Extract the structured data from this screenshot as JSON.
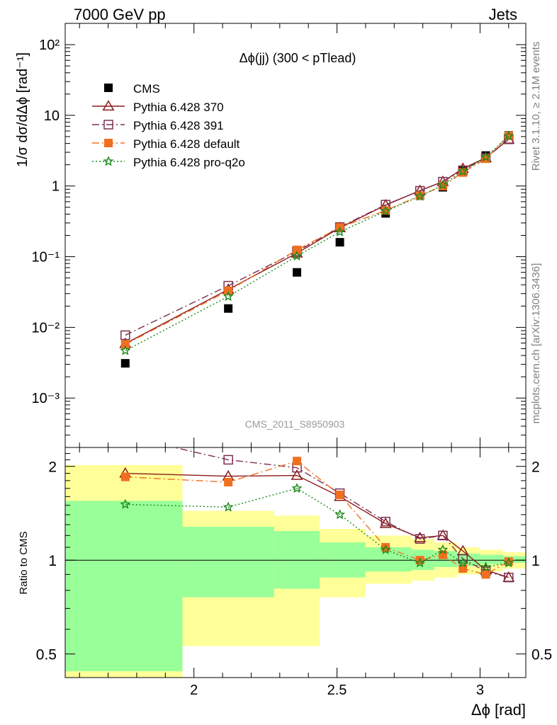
{
  "header": {
    "left": "7000 GeV pp",
    "right": "Jets"
  },
  "side_labels": {
    "rivet": "Rivet 3.1.10, ≥ 2.1M events",
    "mcplots": "mcplots.cern.ch [arXiv:1306.3436]"
  },
  "chart_data": {
    "type": "scatter",
    "title": "Δϕ(jj) (300 < pTlead)",
    "watermark": "CMS_2011_S8950903",
    "xlabel": "Δϕ [rad]",
    "ylabel_main": "1/σ dσ/dΔϕ [rad⁻¹]",
    "ylabel_ratio": "Ratio to CMS",
    "xlim": [
      1.55,
      3.16
    ],
    "ylim_main": [
      0.0002,
      200
    ],
    "ylim_ratio": [
      0.42,
      2.3
    ],
    "log_y": true,
    "x_ticks": [
      "2",
      "2.5",
      "3"
    ],
    "y_ticks_main": [
      "10⁻³",
      "10⁻²",
      "10⁻¹",
      "1",
      "10",
      "10²"
    ],
    "y_ticks_ratio": [
      "0.5",
      "1",
      "2"
    ],
    "x": [
      1.76,
      2.12,
      2.36,
      2.51,
      2.67,
      2.79,
      2.87,
      2.94,
      3.02,
      3.1
    ],
    "cms": [
      0.0031,
      0.0185,
      0.06,
      0.16,
      0.41,
      0.73,
      0.96,
      1.65,
      2.7,
      5.2
    ],
    "series": [
      {
        "name": "CMS",
        "color": "#000000",
        "marker": "filled-square"
      },
      {
        "name": "Pythia 6.428 370",
        "color": "#8b1a1a",
        "marker": "open-triangle",
        "dash": "solid",
        "ratio": [
          1.9,
          1.86,
          1.87,
          1.6,
          1.31,
          1.18,
          1.2,
          1.07,
          0.93,
          0.88
        ]
      },
      {
        "name": "Pythia 6.428 391",
        "color": "#7a3050",
        "marker": "open-square",
        "dash": "dashdot",
        "ratio": [
          2.5,
          2.1,
          1.98,
          1.64,
          1.33,
          1.17,
          1.2,
          1.01,
          0.92,
          0.88
        ]
      },
      {
        "name": "Pythia 6.428 default",
        "color": "#f07020",
        "marker": "filled-square",
        "dash": "dashdot",
        "ratio": [
          1.85,
          1.78,
          2.08,
          1.62,
          1.1,
          1.0,
          1.04,
          0.94,
          0.9,
          0.99
        ]
      },
      {
        "name": "Pythia 6.428 pro-q2o",
        "color": "#1a8a1a",
        "marker": "star",
        "dash": "dotted",
        "ratio": [
          1.51,
          1.48,
          1.7,
          1.4,
          1.08,
          0.98,
          1.08,
          0.98,
          0.95,
          0.98
        ]
      }
    ],
    "uncertainty_bands": [
      {
        "x0": 1.55,
        "x1": 1.96,
        "green": [
          0.44,
          1.55
        ],
        "yellow": [
          0.42,
          2.02
        ]
      },
      {
        "x0": 1.96,
        "x1": 2.28,
        "green": [
          0.76,
          1.28
        ],
        "yellow": [
          0.53,
          1.44
        ]
      },
      {
        "x0": 2.28,
        "x1": 2.44,
        "green": [
          0.81,
          1.24
        ],
        "yellow": [
          0.53,
          1.39
        ]
      },
      {
        "x0": 2.44,
        "x1": 2.6,
        "green": [
          0.88,
          1.14
        ],
        "yellow": [
          0.76,
          1.26
        ]
      },
      {
        "x0": 2.6,
        "x1": 2.76,
        "green": [
          0.92,
          1.1
        ],
        "yellow": [
          0.84,
          1.2
        ]
      },
      {
        "x0": 2.76,
        "x1": 2.84,
        "green": [
          0.93,
          1.08
        ],
        "yellow": [
          0.86,
          1.17
        ]
      },
      {
        "x0": 2.84,
        "x1": 2.92,
        "green": [
          0.95,
          1.07
        ],
        "yellow": [
          0.88,
          1.14
        ]
      },
      {
        "x0": 2.92,
        "x1": 3.0,
        "green": [
          0.96,
          1.05
        ],
        "yellow": [
          0.9,
          1.1
        ]
      },
      {
        "x0": 3.0,
        "x1": 3.08,
        "green": [
          0.97,
          1.04
        ],
        "yellow": [
          0.92,
          1.08
        ]
      },
      {
        "x0": 3.08,
        "x1": 3.16,
        "green": [
          0.98,
          1.03
        ],
        "yellow": [
          0.94,
          1.06
        ]
      }
    ]
  }
}
